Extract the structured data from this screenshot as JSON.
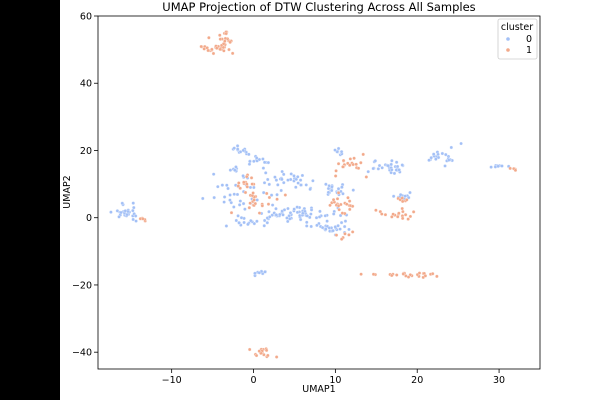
{
  "chart_data": {
    "type": "scatter",
    "title": "UMAP Projection of DTW Clustering Across All Samples",
    "xlabel": "UMAP1",
    "ylabel": "UMAP2",
    "xlim": [
      -19,
      35
    ],
    "ylim": [
      -45,
      60
    ],
    "xticks": [
      -10,
      0,
      10,
      20,
      30
    ],
    "xtick_labels": [
      "−10",
      "0",
      "10",
      "20",
      "30"
    ],
    "yticks": [
      -40,
      -20,
      0,
      20,
      40,
      60
    ],
    "ytick_labels": [
      "−40",
      "−20",
      "0",
      "20",
      "40",
      "60"
    ],
    "grid": false,
    "legend": {
      "title": "cluster",
      "position": "top-right",
      "entries": [
        {
          "label": "0",
          "color": "#a3c0f6"
        },
        {
          "label": "1",
          "color": "#f2a98a"
        }
      ]
    },
    "series": [
      {
        "name": "0",
        "color": "#a3c0f6",
        "clusters": [
          {
            "cx": -15.5,
            "cy": 2,
            "sx": 0.9,
            "sy": 1.5,
            "n": 28
          },
          {
            "cx": -1.5,
            "cy": 20,
            "sx": 0.6,
            "sy": 0.5,
            "n": 12
          },
          {
            "cx": 0.5,
            "cy": 17,
            "sx": 0.8,
            "sy": 0.9,
            "n": 16
          },
          {
            "cx": -2.5,
            "cy": 14.5,
            "sx": 0.4,
            "sy": 0.5,
            "n": 6
          },
          {
            "cx": -1,
            "cy": 6,
            "sx": 1.5,
            "sy": 3,
            "n": 36
          },
          {
            "cx": -1,
            "cy": -1.5,
            "sx": 1.5,
            "sy": 0.6,
            "n": 18
          },
          {
            "cx": 4.5,
            "cy": 11,
            "sx": 1.8,
            "sy": 1.6,
            "n": 32
          },
          {
            "cx": 5.5,
            "cy": 1,
            "sx": 2.5,
            "sy": 1.0,
            "n": 64
          },
          {
            "cx": 10,
            "cy": 8,
            "sx": 1.0,
            "sy": 1.0,
            "n": 22
          },
          {
            "cx": 10,
            "cy": -3,
            "sx": 1.4,
            "sy": 1.2,
            "n": 26
          },
          {
            "cx": 10.5,
            "cy": 19.5,
            "sx": 0.6,
            "sy": 0.4,
            "n": 8
          },
          {
            "cx": 17,
            "cy": 15,
            "sx": 1.2,
            "sy": 1.1,
            "n": 30
          },
          {
            "cx": 18.5,
            "cy": 6.5,
            "sx": 0.6,
            "sy": 0.5,
            "n": 10
          },
          {
            "cx": 23,
            "cy": 18,
            "sx": 1.0,
            "sy": 1.2,
            "n": 22
          },
          {
            "cx": 29.5,
            "cy": 15.3,
            "sx": 0.8,
            "sy": 0.3,
            "n": 8
          },
          {
            "cx": 1,
            "cy": -16.5,
            "sx": 0.6,
            "sy": 0.3,
            "n": 10
          }
        ]
      },
      {
        "name": "1",
        "color": "#f2a98a",
        "clusters": [
          {
            "cx": -4.5,
            "cy": 50.5,
            "sx": 1.0,
            "sy": 0.7,
            "n": 28
          },
          {
            "cx": -3.5,
            "cy": 53.5,
            "sx": 0.7,
            "sy": 1.0,
            "n": 16
          },
          {
            "cx": -13.5,
            "cy": -0.5,
            "sx": 0.3,
            "sy": 0.3,
            "n": 5
          },
          {
            "cx": -0.5,
            "cy": 10,
            "sx": 0.8,
            "sy": 2,
            "n": 14
          },
          {
            "cx": 1,
            "cy": 6.5,
            "sx": 1.2,
            "sy": 0.5,
            "n": 10
          },
          {
            "cx": 0,
            "cy": 3,
            "sx": 0.8,
            "sy": 1.2,
            "n": 12
          },
          {
            "cx": 10.8,
            "cy": 4,
            "sx": 0.8,
            "sy": 1.6,
            "n": 22
          },
          {
            "cx": 12,
            "cy": 16,
            "sx": 1.2,
            "sy": 1.5,
            "n": 22
          },
          {
            "cx": 11,
            "cy": -5,
            "sx": 0.5,
            "sy": 0.6,
            "n": 6
          },
          {
            "cx": 17,
            "cy": 1,
            "sx": 1.2,
            "sy": 0.6,
            "n": 18
          },
          {
            "cx": 18.5,
            "cy": 5,
            "sx": 0.5,
            "sy": 0.6,
            "n": 6
          },
          {
            "cx": 18,
            "cy": -17,
            "sx": 2.6,
            "sy": 0.4,
            "n": 24
          },
          {
            "cx": 32,
            "cy": 14.5,
            "sx": 0.3,
            "sy": 0.3,
            "n": 4
          },
          {
            "cx": 1,
            "cy": -40,
            "sx": 0.9,
            "sy": 0.8,
            "n": 16
          }
        ]
      }
    ]
  }
}
